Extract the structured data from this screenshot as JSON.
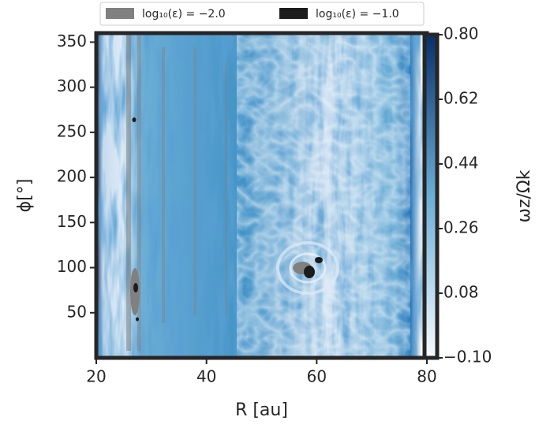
{
  "chart_data": {
    "type": "heatmap",
    "xlabel": "R [au]",
    "ylabel": "ϕ[°]",
    "xlim": [
      20,
      80
    ],
    "ylim": [
      0,
      360
    ],
    "xticks": [
      20,
      40,
      60,
      80
    ],
    "yticks": [
      50,
      100,
      150,
      200,
      250,
      300,
      350
    ],
    "colorbar": {
      "label": "ωz/Ωk",
      "lim": [
        -0.1,
        0.8
      ],
      "ticks": [
        {
          "value": 0.8,
          "label": "0.80"
        },
        0.62,
        0.44,
        0.26,
        0.08,
        {
          "value": -0.1,
          "label": "−0.10"
        }
      ],
      "colors": [
        "#f7fbff",
        "#6baed6",
        "#08306b"
      ]
    },
    "series": [
      {
        "name": "log₁₀(ε) = −2.0",
        "color": "#808080"
      },
      {
        "name": "log₁₀(ε) = −1.0",
        "color": "#1c1c1c"
      }
    ],
    "legend": "upper center"
  }
}
